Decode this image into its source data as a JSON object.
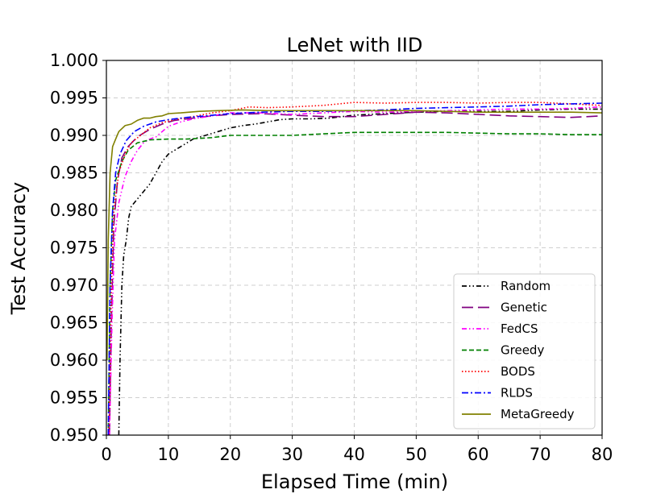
{
  "chart_data": {
    "type": "line",
    "title": "LeNet with IID",
    "xlabel": "Elapsed Time (min)",
    "ylabel": "Test Accuracy",
    "xlim": [
      0,
      80
    ],
    "ylim": [
      0.95,
      1.0
    ],
    "x_ticks": [
      "0",
      "10",
      "20",
      "30",
      "40",
      "50",
      "60",
      "70",
      "80"
    ],
    "y_ticks": [
      "0.950",
      "0.955",
      "0.960",
      "0.965",
      "0.970",
      "0.975",
      "0.980",
      "0.985",
      "0.990",
      "0.995",
      "1.000"
    ],
    "grid": true,
    "legend_position": "bottom-right",
    "series": [
      {
        "name": "Random",
        "color": "#000000",
        "style": "dashdotdot",
        "points": [
          [
            2.0,
            0.95
          ],
          [
            2.2,
            0.96
          ],
          [
            2.5,
            0.97
          ],
          [
            2.8,
            0.974
          ],
          [
            3.2,
            0.976
          ],
          [
            3.6,
            0.979
          ],
          [
            4.0,
            0.9805
          ],
          [
            5.0,
            0.9815
          ],
          [
            6.0,
            0.9825
          ],
          [
            7.0,
            0.9835
          ],
          [
            8.0,
            0.985
          ],
          [
            9.0,
            0.9865
          ],
          [
            10.0,
            0.9875
          ],
          [
            12.0,
            0.9885
          ],
          [
            14.0,
            0.9895
          ],
          [
            16.0,
            0.99
          ],
          [
            18.0,
            0.9905
          ],
          [
            20.0,
            0.991
          ],
          [
            22.0,
            0.9913
          ],
          [
            24.0,
            0.9915
          ],
          [
            26.0,
            0.9918
          ],
          [
            28.0,
            0.9921
          ],
          [
            30.0,
            0.9922
          ],
          [
            33.0,
            0.9922
          ],
          [
            36.0,
            0.9923
          ],
          [
            40.0,
            0.9927
          ],
          [
            45.0,
            0.9929
          ],
          [
            50.0,
            0.9931
          ],
          [
            55.0,
            0.9932
          ],
          [
            60.0,
            0.9932
          ],
          [
            65.0,
            0.9932
          ],
          [
            70.0,
            0.9934
          ],
          [
            75.0,
            0.9935
          ],
          [
            80.0,
            0.9935
          ]
        ]
      },
      {
        "name": "Genetic",
        "color": "#800080",
        "style": "longdash",
        "points": [
          [
            0.5,
            0.95
          ],
          [
            0.8,
            0.965
          ],
          [
            1.2,
            0.978
          ],
          [
            1.8,
            0.984
          ],
          [
            2.5,
            0.987
          ],
          [
            3.5,
            0.9885
          ],
          [
            5.0,
            0.9898
          ],
          [
            7.0,
            0.9908
          ],
          [
            9.0,
            0.9915
          ],
          [
            11.0,
            0.992
          ],
          [
            14.0,
            0.9923
          ],
          [
            17.0,
            0.9926
          ],
          [
            20.0,
            0.9928
          ],
          [
            25.0,
            0.9929
          ],
          [
            30.0,
            0.9927
          ],
          [
            35.0,
            0.9925
          ],
          [
            40.0,
            0.9925
          ],
          [
            45.0,
            0.9928
          ],
          [
            50.0,
            0.9931
          ],
          [
            55.0,
            0.993
          ],
          [
            60.0,
            0.9928
          ],
          [
            65.0,
            0.9926
          ],
          [
            70.0,
            0.9925
          ],
          [
            75.0,
            0.9924
          ],
          [
            80.0,
            0.9926
          ]
        ]
      },
      {
        "name": "FedCS",
        "color": "#ff00ff",
        "style": "dashdotdot",
        "points": [
          [
            0.5,
            0.95
          ],
          [
            0.9,
            0.965
          ],
          [
            1.3,
            0.976
          ],
          [
            2.0,
            0.981
          ],
          [
            3.0,
            0.9845
          ],
          [
            4.0,
            0.9865
          ],
          [
            5.0,
            0.988
          ],
          [
            6.0,
            0.989
          ],
          [
            7.0,
            0.9895
          ],
          [
            8.0,
            0.9898
          ],
          [
            9.0,
            0.9905
          ],
          [
            10.0,
            0.9912
          ],
          [
            12.0,
            0.9918
          ],
          [
            14.0,
            0.9922
          ],
          [
            17.0,
            0.9926
          ],
          [
            20.0,
            0.993
          ],
          [
            25.0,
            0.993
          ],
          [
            30.0,
            0.9928
          ],
          [
            35.0,
            0.993
          ],
          [
            40.0,
            0.9932
          ],
          [
            45.0,
            0.9931
          ],
          [
            50.0,
            0.9932
          ],
          [
            55.0,
            0.9933
          ],
          [
            60.0,
            0.9934
          ],
          [
            65.0,
            0.9935
          ],
          [
            70.0,
            0.9935
          ],
          [
            75.0,
            0.9936
          ],
          [
            80.0,
            0.9938
          ]
        ]
      },
      {
        "name": "Greedy",
        "color": "#008000",
        "style": "dashed",
        "points": [
          [
            0.3,
            0.95
          ],
          [
            0.6,
            0.97
          ],
          [
            1.0,
            0.98
          ],
          [
            1.5,
            0.984
          ],
          [
            2.5,
            0.9865
          ],
          [
            3.5,
            0.988
          ],
          [
            5.0,
            0.989
          ],
          [
            7.0,
            0.9894
          ],
          [
            10.0,
            0.9895
          ],
          [
            13.0,
            0.9895
          ],
          [
            17.0,
            0.9897
          ],
          [
            20.0,
            0.99
          ],
          [
            25.0,
            0.99
          ],
          [
            30.0,
            0.99
          ],
          [
            35.0,
            0.9902
          ],
          [
            40.0,
            0.9904
          ],
          [
            45.0,
            0.9904
          ],
          [
            50.0,
            0.9904
          ],
          [
            55.0,
            0.9904
          ],
          [
            60.0,
            0.9903
          ],
          [
            65.0,
            0.9902
          ],
          [
            70.0,
            0.9902
          ],
          [
            75.0,
            0.9901
          ],
          [
            80.0,
            0.9901
          ]
        ]
      },
      {
        "name": "BODS",
        "color": "#ff0000",
        "style": "dotted",
        "points": [
          [
            0.4,
            0.95
          ],
          [
            0.8,
            0.97
          ],
          [
            1.2,
            0.98
          ],
          [
            2.0,
            0.985
          ],
          [
            3.0,
            0.9875
          ],
          [
            4.0,
            0.989
          ],
          [
            5.5,
            0.99
          ],
          [
            7.0,
            0.991
          ],
          [
            9.0,
            0.9917
          ],
          [
            11.0,
            0.9921
          ],
          [
            14.0,
            0.9925
          ],
          [
            17.0,
            0.993
          ],
          [
            20.0,
            0.9933
          ],
          [
            23.0,
            0.9938
          ],
          [
            26.0,
            0.9937
          ],
          [
            30.0,
            0.9938
          ],
          [
            35.0,
            0.994
          ],
          [
            40.0,
            0.9944
          ],
          [
            45.0,
            0.9943
          ],
          [
            50.0,
            0.9944
          ],
          [
            55.0,
            0.9944
          ],
          [
            60.0,
            0.9943
          ],
          [
            65.0,
            0.9944
          ],
          [
            70.0,
            0.9944
          ],
          [
            75.0,
            0.9942
          ],
          [
            80.0,
            0.994
          ]
        ]
      },
      {
        "name": "RLDS",
        "color": "#0000ff",
        "style": "dashdot",
        "points": [
          [
            0.3,
            0.95
          ],
          [
            0.6,
            0.97
          ],
          [
            1.0,
            0.98
          ],
          [
            1.5,
            0.985
          ],
          [
            2.2,
            0.9875
          ],
          [
            3.2,
            0.9893
          ],
          [
            4.5,
            0.9905
          ],
          [
            6.0,
            0.9912
          ],
          [
            8.0,
            0.9918
          ],
          [
            10.0,
            0.9921
          ],
          [
            13.0,
            0.9924
          ],
          [
            16.0,
            0.9926
          ],
          [
            20.0,
            0.9929
          ],
          [
            25.0,
            0.9931
          ],
          [
            30.0,
            0.9932
          ],
          [
            35.0,
            0.9932
          ],
          [
            40.0,
            0.9933
          ],
          [
            45.0,
            0.9934
          ],
          [
            50.0,
            0.9936
          ],
          [
            55.0,
            0.9937
          ],
          [
            60.0,
            0.9938
          ],
          [
            65.0,
            0.9939
          ],
          [
            70.0,
            0.9941
          ],
          [
            75.0,
            0.9942
          ],
          [
            80.0,
            0.9943
          ]
        ]
      },
      {
        "name": "MetaGreedy",
        "color": "#808000",
        "style": "solid",
        "points": [
          [
            0.1,
            0.96
          ],
          [
            0.3,
            0.976
          ],
          [
            0.6,
            0.985
          ],
          [
            1.0,
            0.9885
          ],
          [
            1.5,
            0.9895
          ],
          [
            2.0,
            0.9905
          ],
          [
            3.0,
            0.9913
          ],
          [
            4.0,
            0.9915
          ],
          [
            5.0,
            0.992
          ],
          [
            6.0,
            0.9923
          ],
          [
            7.0,
            0.9923
          ],
          [
            8.0,
            0.9925
          ],
          [
            9.0,
            0.9926
          ],
          [
            10.0,
            0.9929
          ],
          [
            12.0,
            0.993
          ],
          [
            15.0,
            0.9932
          ],
          [
            18.0,
            0.9933
          ],
          [
            22.0,
            0.9934
          ],
          [
            26.0,
            0.9933
          ],
          [
            30.0,
            0.9933
          ],
          [
            35.0,
            0.9933
          ],
          [
            40.0,
            0.9933
          ],
          [
            45.0,
            0.9933
          ],
          [
            50.0,
            0.9933
          ],
          [
            55.0,
            0.9932
          ],
          [
            60.0,
            0.9931
          ],
          [
            65.0,
            0.9931
          ],
          [
            70.0,
            0.9931
          ],
          [
            75.0,
            0.9931
          ],
          [
            80.0,
            0.993
          ]
        ]
      }
    ]
  }
}
